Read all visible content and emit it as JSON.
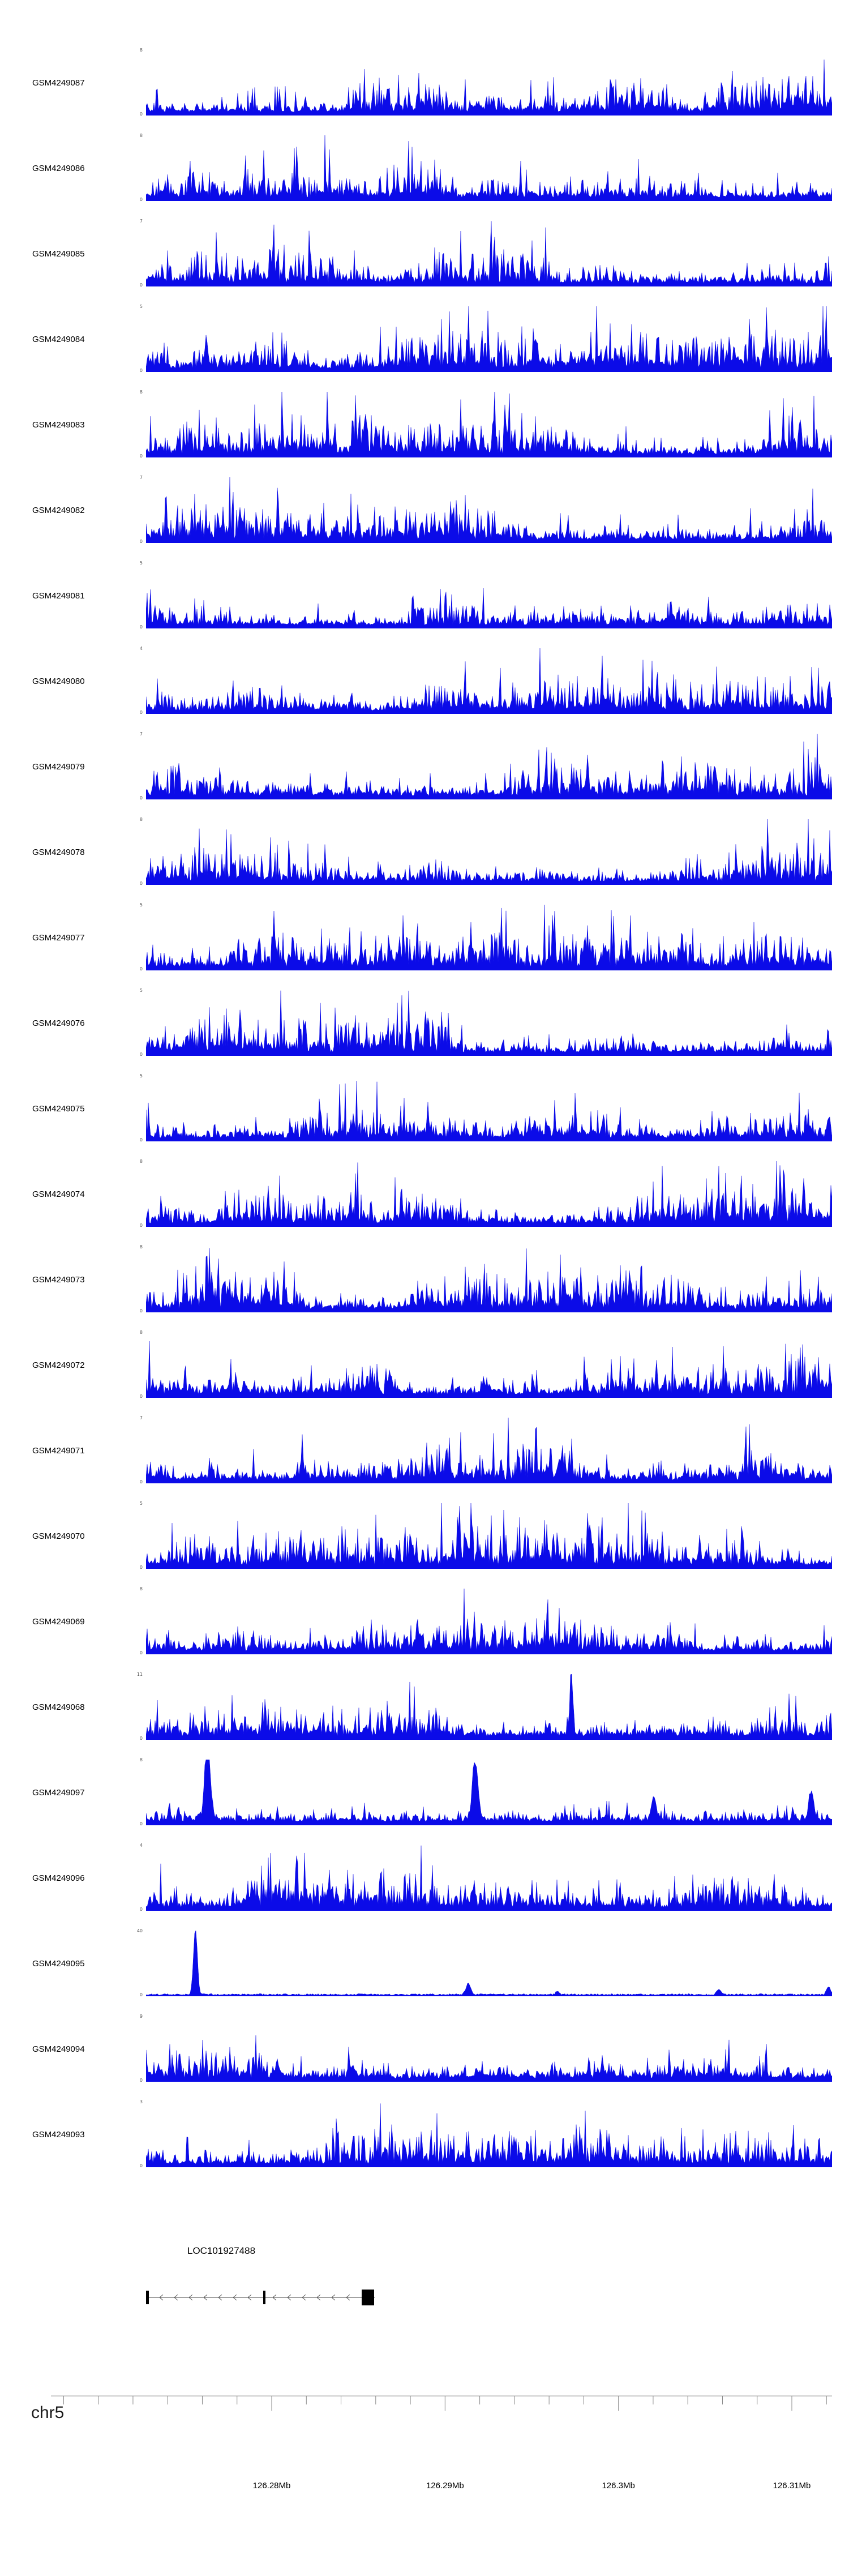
{
  "figure": {
    "background": "#ffffff",
    "signal_color": "#0b0bE8",
    "axis_min_label": "0"
  },
  "chart_data": {
    "type": "area",
    "title": "",
    "legend": "none",
    "grid": false,
    "tracks": [
      {
        "label": "GSM4249087",
        "ymax": 8,
        "ymin": 0,
        "seed": 101,
        "profile": "dense"
      },
      {
        "label": "GSM4249086",
        "ymax": 8,
        "ymin": 0,
        "seed": 202,
        "profile": "dense"
      },
      {
        "label": "GSM4249085",
        "ymax": 7,
        "ymin": 0,
        "seed": 303,
        "profile": "dense"
      },
      {
        "label": "GSM4249084",
        "ymax": 5,
        "ymin": 0,
        "seed": 404,
        "profile": "dense"
      },
      {
        "label": "GSM4249083",
        "ymax": 8,
        "ymin": 0,
        "seed": 505,
        "profile": "dense"
      },
      {
        "label": "GSM4249082",
        "ymax": 7,
        "ymin": 0,
        "seed": 606,
        "profile": "dense"
      },
      {
        "label": "GSM4249081",
        "ymax": 5,
        "ymin": 0,
        "seed": 707,
        "profile": "dense"
      },
      {
        "label": "GSM4249080",
        "ymax": 4,
        "ymin": 0,
        "seed": 808,
        "profile": "dense"
      },
      {
        "label": "GSM4249079",
        "ymax": 7,
        "ymin": 0,
        "seed": 909,
        "profile": "dense"
      },
      {
        "label": "GSM4249078",
        "ymax": 8,
        "ymin": 0,
        "seed": 111,
        "profile": "dense"
      },
      {
        "label": "GSM4249077",
        "ymax": 5,
        "ymin": 0,
        "seed": 212,
        "profile": "dense"
      },
      {
        "label": "GSM4249076",
        "ymax": 5,
        "ymin": 0,
        "seed": 313,
        "profile": "dense"
      },
      {
        "label": "GSM4249075",
        "ymax": 5,
        "ymin": 0,
        "seed": 414,
        "profile": "dense"
      },
      {
        "label": "GSM4249074",
        "ymax": 8,
        "ymin": 0,
        "seed": 515,
        "profile": "dense"
      },
      {
        "label": "GSM4249073",
        "ymax": 8,
        "ymin": 0,
        "seed": 616,
        "profile": "dense"
      },
      {
        "label": "GSM4249072",
        "ymax": 8,
        "ymin": 0,
        "seed": 717,
        "profile": "dense"
      },
      {
        "label": "GSM4249071",
        "ymax": 7,
        "ymin": 0,
        "seed": 818,
        "profile": "dense"
      },
      {
        "label": "GSM4249070",
        "ymax": 5,
        "ymin": 0,
        "seed": 919,
        "profile": "dense"
      },
      {
        "label": "GSM4249069",
        "ymax": 8,
        "ymin": 0,
        "seed": 121,
        "profile": "dense"
      },
      {
        "label": "GSM4249068",
        "ymax": 11,
        "ymin": 0,
        "seed": 232,
        "profile": "dense",
        "peaks": [
          {
            "p": 0.62,
            "h": 0.95,
            "w": 0.003
          }
        ]
      },
      {
        "label": "GSM4249097",
        "ymax": 8,
        "ymin": 0,
        "seed": 343,
        "profile": "mixed",
        "peaks": [
          {
            "p": 0.09,
            "h": 1.0,
            "w": 0.006
          },
          {
            "p": 0.48,
            "h": 0.85,
            "w": 0.006
          },
          {
            "p": 0.74,
            "h": 0.35,
            "w": 0.005
          },
          {
            "p": 0.97,
            "h": 0.45,
            "w": 0.005
          }
        ]
      },
      {
        "label": "GSM4249096",
        "ymax": 4,
        "ymin": 0,
        "seed": 454,
        "profile": "dense"
      },
      {
        "label": "GSM4249095",
        "ymax": 40,
        "ymin": 0,
        "seed": 565,
        "profile": "sparse",
        "peaks": [
          {
            "p": 0.072,
            "h": 1.0,
            "w": 0.004
          },
          {
            "p": 0.47,
            "h": 0.17,
            "w": 0.005
          },
          {
            "p": 0.6,
            "h": 0.05,
            "w": 0.004
          },
          {
            "p": 0.835,
            "h": 0.08,
            "w": 0.004
          },
          {
            "p": 0.995,
            "h": 0.12,
            "w": 0.004
          }
        ]
      },
      {
        "label": "GSM4249094",
        "ymax": 9,
        "ymin": 0,
        "seed": 676,
        "profile": "dense"
      },
      {
        "label": "GSM4249093",
        "ymax": 3,
        "ymin": 0,
        "seed": 787,
        "profile": "dense"
      }
    ],
    "x_axis": {
      "chromosome": "chr5",
      "tick_labels": [
        "126.28Mb",
        "126.29Mb",
        "126.3Mb",
        "126.31Mb"
      ]
    },
    "gene_track": {
      "name": "LOC101927488",
      "strand": "-"
    }
  }
}
